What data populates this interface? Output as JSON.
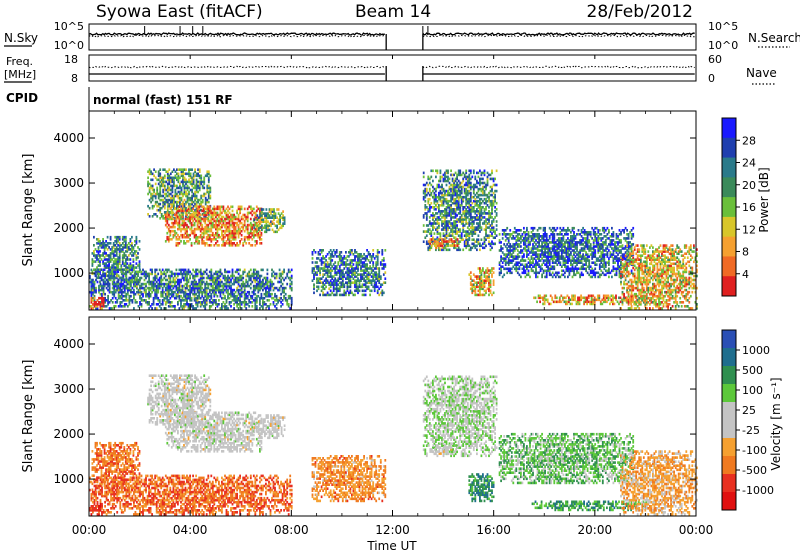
{
  "header": {
    "station": "Syowa East (fitACF)",
    "beam": "Beam 14",
    "date": "28/Feb/2012"
  },
  "status_panels": {
    "nsky_label": "N.Sky",
    "nsearch_label": "N.Search",
    "freq_label_1": "Freq.",
    "freq_label_2": "[MHz]",
    "nave_label": "Nave",
    "cpid_label": "CPID",
    "cpid_text": "normal (fast) 151 RF",
    "noise_ticks": [
      "10^5",
      "10^0"
    ],
    "freq_ticks": [
      "18",
      "8"
    ],
    "nave_ticks": [
      "60",
      "0"
    ],
    "freq_range_mhz": [
      8,
      18
    ],
    "nave_range": [
      0,
      60
    ],
    "data_gap_ut": [
      "11:45",
      "13:12"
    ]
  },
  "time_axis": {
    "label": "Time UT",
    "ticks": [
      "00:00",
      "04:00",
      "08:00",
      "12:00",
      "16:00",
      "20:00",
      "00:00"
    ]
  },
  "chart_data": [
    {
      "type": "heatmap",
      "parameter": "power",
      "ylabel": "Slant Range [km]",
      "y_ticks": [
        1000,
        2000,
        3000,
        4000
      ],
      "ylim_km": [
        180,
        4600
      ],
      "xlim_hours": [
        0,
        24
      ],
      "colorbar_label": "Power [dB]",
      "colorbar_ticks": [
        "28",
        "24",
        "20",
        "16",
        "12",
        "8",
        "4"
      ],
      "colorbar_range_db": [
        0,
        32
      ],
      "colorbar_colors": [
        "#1a1aff",
        "#1f3faf",
        "#2a7a8a",
        "#3a8a5a",
        "#6abf3a",
        "#d8c62a",
        "#f5a030",
        "#f06a25",
        "#e02020"
      ],
      "regions": [
        {
          "t0": 0.1,
          "t1": 2.0,
          "r0": 700,
          "r1": 1800,
          "level": 0.3
        },
        {
          "t0": 2.3,
          "t1": 4.8,
          "r0": 2200,
          "r1": 3300,
          "level": 0.4
        },
        {
          "t0": 3.0,
          "t1": 6.8,
          "r0": 1600,
          "r1": 2500,
          "level": 0.75
        },
        {
          "t0": 6.5,
          "t1": 7.7,
          "r0": 1900,
          "r1": 2400,
          "level": 0.45
        },
        {
          "t0": 0.0,
          "t1": 8.0,
          "r0": 200,
          "r1": 1100,
          "level": 0.3
        },
        {
          "t0": 8.8,
          "t1": 11.7,
          "r0": 500,
          "r1": 1500,
          "level": 0.3
        },
        {
          "t0": 13.2,
          "t1": 16.1,
          "r0": 1500,
          "r1": 3300,
          "level": 0.35
        },
        {
          "t0": 13.4,
          "t1": 14.6,
          "r0": 1550,
          "r1": 1750,
          "level": 0.8
        },
        {
          "t0": 15.0,
          "t1": 16.0,
          "r0": 500,
          "r1": 1100,
          "level": 0.65
        },
        {
          "t0": 16.2,
          "t1": 21.5,
          "r0": 900,
          "r1": 2000,
          "level": 0.25
        },
        {
          "t0": 17.5,
          "t1": 22.0,
          "r0": 300,
          "r1": 500,
          "level": 0.7
        },
        {
          "t0": 21.0,
          "t1": 24.0,
          "r0": 200,
          "r1": 1600,
          "level": 0.65
        },
        {
          "t0": 0.0,
          "t1": 0.6,
          "r0": 200,
          "r1": 450,
          "level": 0.9
        }
      ]
    },
    {
      "type": "heatmap",
      "parameter": "velocity",
      "ylabel": "Slant Range [km]",
      "y_ticks": [
        1000,
        2000,
        3000,
        4000
      ],
      "ylim_km": [
        180,
        4600
      ],
      "xlim_hours": [
        0,
        24
      ],
      "colorbar_label": "Velocity [m s⁻¹]",
      "colorbar_ticks": [
        "1000",
        "500",
        "100",
        "25",
        "-25",
        "-100",
        "-500",
        "-1000"
      ],
      "colorbar_range_ms": [
        -1200,
        1200
      ],
      "colorbar_colors": [
        "#2a4fb5",
        "#1f6e8e",
        "#2f8f4f",
        "#5cc83a",
        "#c4c4c4",
        "#c4c4c4",
        "#f5a030",
        "#f07a20",
        "#e83020",
        "#e01010"
      ],
      "regions": [
        {
          "t0": 0.1,
          "t1": 2.0,
          "r0": 700,
          "r1": 1800,
          "vel": -0.5
        },
        {
          "t0": 2.3,
          "t1": 4.8,
          "r0": 2200,
          "r1": 3300,
          "vel": 0.0
        },
        {
          "t0": 3.0,
          "t1": 6.8,
          "r0": 1600,
          "r1": 2500,
          "vel": 0.0
        },
        {
          "t0": 6.5,
          "t1": 7.7,
          "r0": 1900,
          "r1": 2400,
          "vel": 0.0
        },
        {
          "t0": 0.0,
          "t1": 8.0,
          "r0": 200,
          "r1": 1100,
          "vel": -0.55
        },
        {
          "t0": 8.8,
          "t1": 11.7,
          "r0": 500,
          "r1": 1500,
          "vel": -0.4
        },
        {
          "t0": 13.2,
          "t1": 16.1,
          "r0": 1500,
          "r1": 3300,
          "vel": 0.15
        },
        {
          "t0": 13.4,
          "t1": 14.6,
          "r0": 1550,
          "r1": 1750,
          "vel": 0.0
        },
        {
          "t0": 15.0,
          "t1": 16.0,
          "r0": 500,
          "r1": 1100,
          "vel": 0.55
        },
        {
          "t0": 16.2,
          "t1": 21.5,
          "r0": 900,
          "r1": 2000,
          "vel": 0.3
        },
        {
          "t0": 17.5,
          "t1": 22.0,
          "r0": 300,
          "r1": 500,
          "vel": 0.45
        },
        {
          "t0": 21.0,
          "t1": 24.0,
          "r0": 200,
          "r1": 1600,
          "vel": -0.3
        },
        {
          "t0": 0.0,
          "t1": 0.6,
          "r0": 200,
          "r1": 450,
          "vel": -0.7
        }
      ]
    }
  ]
}
